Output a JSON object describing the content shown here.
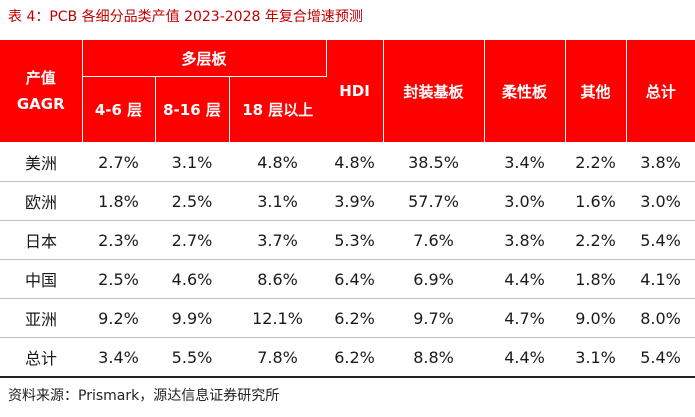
{
  "title": "表 4：PCB 各细分品类产值 2023-2028 年复合增速预测",
  "header": {
    "corner": "产值\nGAGR",
    "group": "多层板",
    "sub": [
      "4-6 层",
      "8-16 层",
      "18 层以上"
    ],
    "cols": [
      "HDI",
      "封装基板",
      "柔性板",
      "其他",
      "总计"
    ]
  },
  "rows": [
    {
      "region": "美洲",
      "values": [
        "2.7%",
        "3.1%",
        "4.8%",
        "4.8%",
        "38.5%",
        "3.4%",
        "2.2%",
        "3.8%"
      ]
    },
    {
      "region": "欧洲",
      "values": [
        "1.8%",
        "2.5%",
        "3.1%",
        "3.9%",
        "57.7%",
        "3.0%",
        "1.6%",
        "3.0%"
      ]
    },
    {
      "region": "日本",
      "values": [
        "2.3%",
        "2.7%",
        "3.7%",
        "5.3%",
        "7.6%",
        "3.8%",
        "2.2%",
        "5.4%"
      ]
    },
    {
      "region": "中国",
      "values": [
        "2.5%",
        "4.6%",
        "8.6%",
        "6.4%",
        "6.9%",
        "4.4%",
        "1.8%",
        "4.1%"
      ]
    },
    {
      "region": "亚洲",
      "values": [
        "9.2%",
        "9.9%",
        "12.1%",
        "6.2%",
        "9.7%",
        "4.7%",
        "9.0%",
        "8.0%"
      ]
    },
    {
      "region": "总计",
      "values": [
        "3.4%",
        "5.5%",
        "7.8%",
        "6.2%",
        "8.8%",
        "4.4%",
        "3.1%",
        "5.4%"
      ]
    }
  ],
  "source": "资料来源：Prismark，源达信息证券研究所",
  "colors": {
    "header_bg": "#ff0000",
    "title": "#c00000"
  }
}
